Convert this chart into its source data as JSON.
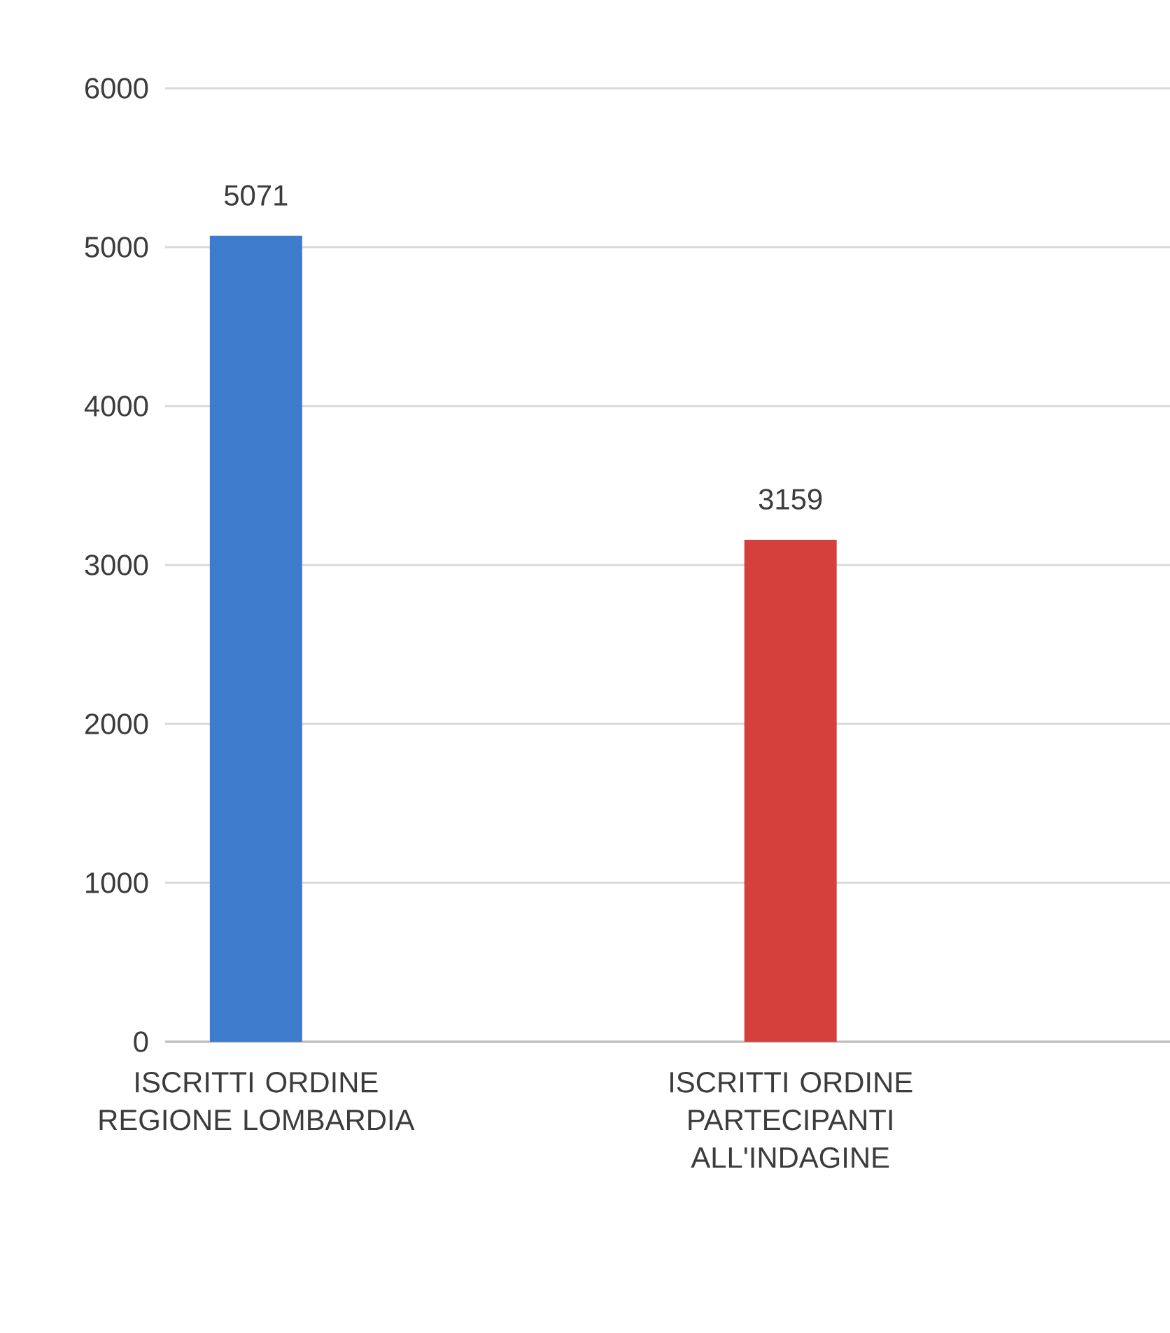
{
  "chart_data": {
    "type": "bar",
    "categories": [
      "ISCRITTI ORDINE REGIONE LOMBARDIA",
      "ISCRITTI ORDINE PARTECIPANTI ALL'INDAGINE"
    ],
    "values": [
      5071,
      3159
    ],
    "colors": [
      "#3d7ccc",
      "#d6403c"
    ],
    "ylim": [
      0,
      6000
    ],
    "yticks": [
      0,
      1000,
      2000,
      3000,
      4000,
      5000,
      6000
    ],
    "grid": "y",
    "data_labels": true
  }
}
